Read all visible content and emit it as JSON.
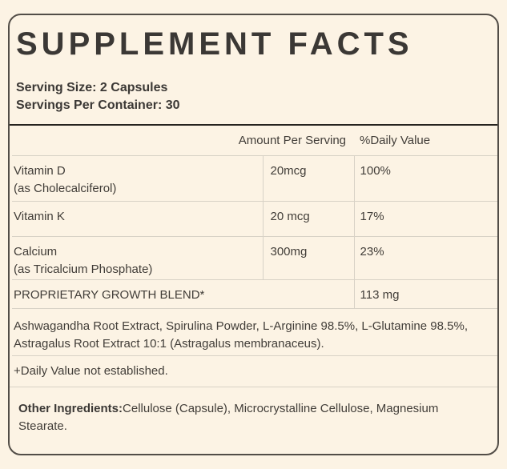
{
  "colors": {
    "background": "#fcf3e4",
    "text": "#3d3936",
    "outer_border": "#524d47",
    "row_line": "#d8d2c6",
    "table_top_line": "#26231f"
  },
  "title": "SUPPLEMENT FACTS",
  "serving": {
    "size": "Serving Size: 2 Capsules",
    "per_container": "Servings Per Container: 30"
  },
  "table": {
    "headers": {
      "amount": "Amount Per Serving",
      "daily_value": "%Daily Value"
    },
    "rows": [
      {
        "name": "Vitamin D",
        "detail": "(as Cholecalciferol)",
        "amount": "20mcg",
        "dv": "100%"
      },
      {
        "name": "Vitamin K",
        "detail": "",
        "amount": "20 mcg",
        "dv": "17%"
      },
      {
        "name": "Calcium",
        "detail": "(as Tricalcium Phosphate)",
        "amount": "300mg",
        "dv": "23%"
      }
    ],
    "blend": {
      "name": "PROPRIETARY GROWTH BLEND*",
      "amount": "113 mg"
    },
    "blend_ingredients": "Ashwagandha Root Extract, Spirulina Powder, L-Arginine 98.5%, L-Glutamine 98.5%, Astragalus Root Extract 10:1 (Astragalus membranaceus).",
    "footnote": "+Daily Value not established."
  },
  "other_ingredients": {
    "label": "Other Ingredients:",
    "text": "Cellulose (Capsule), Microcrystalline Cellulose, Magnesium Stearate."
  }
}
